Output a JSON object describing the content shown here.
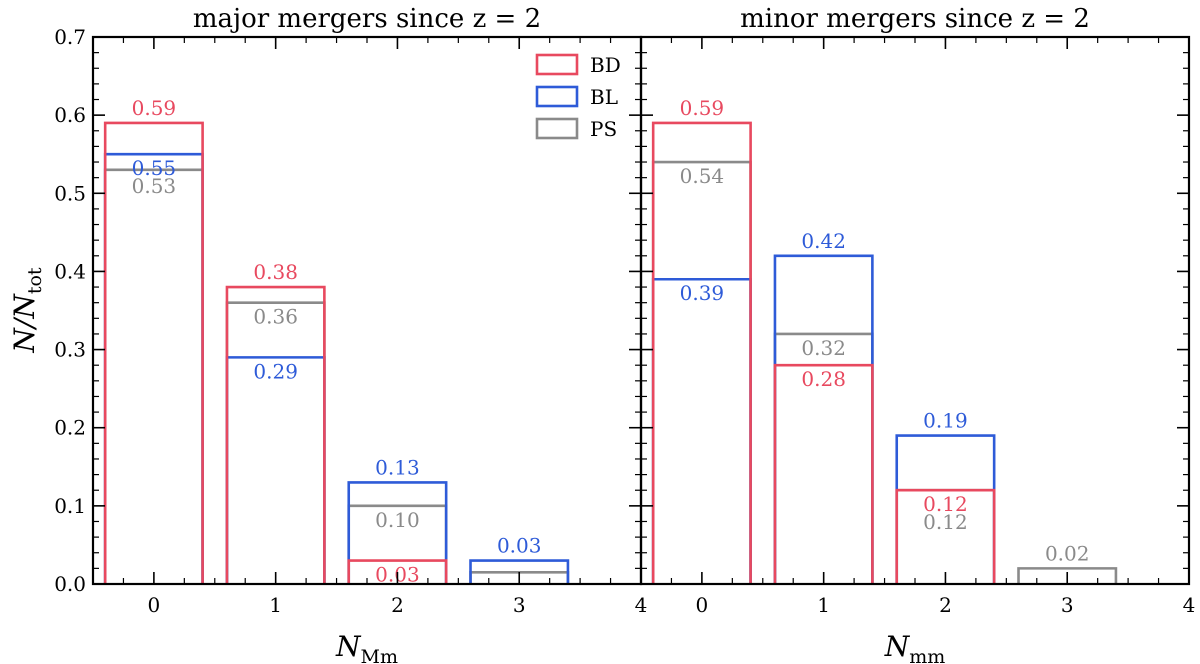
{
  "colors": {
    "BD": "#e8495f",
    "BL": "#2e5bd8",
    "PS": "#8a8a8a"
  },
  "legend": [
    "BD",
    "BL",
    "PS"
  ],
  "y_axis": {
    "label": "N/N",
    "label_sub": "tot",
    "ticks": [
      "0.0",
      "0.1",
      "0.2",
      "0.3",
      "0.4",
      "0.5",
      "0.6",
      "0.7"
    ]
  },
  "chart_data": [
    {
      "type": "bar",
      "title": "major mergers since z = 2",
      "xlabel": "N",
      "xlabel_sub": "Mm",
      "x_ticks": [
        "0",
        "1",
        "2",
        "3",
        "4"
      ],
      "ylim": [
        0,
        0.7
      ],
      "categories": [
        "0",
        "1",
        "2",
        "3"
      ],
      "series": [
        {
          "name": "BD",
          "values": [
            0.59,
            0.38,
            0.03,
            0.0
          ],
          "labels": [
            "0.59",
            "0.38",
            "0.03",
            ""
          ]
        },
        {
          "name": "BL",
          "values": [
            0.55,
            0.29,
            0.13,
            0.03
          ],
          "labels": [
            "0.55",
            "0.29",
            "0.13",
            "0.03"
          ]
        },
        {
          "name": "PS",
          "values": [
            0.53,
            0.36,
            0.1,
            0.015
          ],
          "labels": [
            "0.53",
            "0.36",
            "0.10",
            ""
          ]
        }
      ]
    },
    {
      "type": "bar",
      "title": "minor mergers since z = 2",
      "xlabel": "N",
      "xlabel_sub": "mm",
      "x_ticks": [
        "0",
        "1",
        "2",
        "3",
        "4"
      ],
      "ylim": [
        0,
        0.7
      ],
      "categories": [
        "0",
        "1",
        "2",
        "3"
      ],
      "series": [
        {
          "name": "BD",
          "values": [
            0.59,
            0.28,
            0.12,
            0.0
          ],
          "labels": [
            "0.59",
            "0.28",
            "0.12",
            ""
          ]
        },
        {
          "name": "BL",
          "values": [
            0.39,
            0.42,
            0.19,
            0.0
          ],
          "labels": [
            "0.39",
            "0.42",
            "0.19",
            ""
          ]
        },
        {
          "name": "PS",
          "values": [
            0.54,
            0.32,
            0.12,
            0.02
          ],
          "labels": [
            "0.54",
            "0.32",
            "0.12",
            "0.02"
          ]
        }
      ]
    }
  ]
}
